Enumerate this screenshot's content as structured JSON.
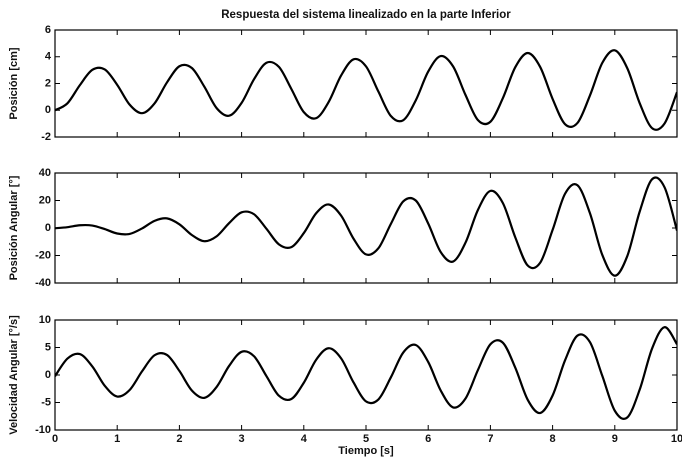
{
  "chart_data": [
    {
      "type": "line",
      "title": "Respuesta del sistema linealizado en la parte Inferior",
      "ylabel": "Posición [cm]",
      "x": [
        0,
        0.2,
        0.4,
        0.6,
        0.8,
        1,
        1.2,
        1.4,
        1.6,
        1.8,
        2,
        2.2,
        2.4,
        2.6,
        2.8,
        3,
        3.2,
        3.4,
        3.6,
        3.8,
        4,
        4.2,
        4.4,
        4.6,
        4.8,
        5,
        5.2,
        5.4,
        5.6,
        5.8,
        6,
        6.2,
        6.4,
        6.6,
        6.8,
        7,
        7.2,
        7.4,
        7.6,
        7.8,
        8,
        8.2,
        8.4,
        8.6,
        8.8,
        9,
        9.2,
        9.4,
        9.6,
        9.8,
        10
      ],
      "series": [
        {
          "color": "#000000",
          "values": [
            0,
            0.52,
            1.88,
            3.02,
            3.05,
            1.9,
            0.42,
            -0.22,
            0.51,
            2.08,
            3.29,
            3.16,
            1.77,
            0.15,
            -0.41,
            0.55,
            2.32,
            3.55,
            3.24,
            1.59,
            -0.14,
            -0.59,
            0.62,
            2.6,
            3.81,
            3.28,
            1.39,
            -0.43,
            -0.74,
            0.74,
            2.89,
            4.05,
            3.28,
            1.14,
            -0.74,
            -0.86,
            0.9,
            3.22,
            4.28,
            3.24,
            0.85,
            -1.04,
            -0.95,
            1.1,
            3.55,
            4.48,
            3.15,
            0.53,
            -1.34,
            -0.99,
            1.35
          ]
        }
      ],
      "xlim": [
        0,
        10
      ],
      "ylim": [
        -2,
        6
      ],
      "yticks": [
        -2,
        0,
        2,
        4,
        6
      ]
    },
    {
      "type": "line",
      "ylabel": "Posición Angular [°]",
      "x": [
        0,
        0.2,
        0.4,
        0.6,
        0.8,
        1,
        1.2,
        1.4,
        1.6,
        1.8,
        2,
        2.2,
        2.4,
        2.6,
        2.8,
        3,
        3.2,
        3.4,
        3.6,
        3.8,
        4,
        4.2,
        4.4,
        4.6,
        4.8,
        5,
        5.2,
        5.4,
        5.6,
        5.8,
        6,
        6.2,
        6.4,
        6.6,
        6.8,
        7,
        7.2,
        7.4,
        7.6,
        7.8,
        8,
        8.2,
        8.4,
        8.6,
        8.8,
        9,
        9.2,
        9.4,
        9.6,
        9.8,
        10
      ],
      "series": [
        {
          "color": "#000000",
          "values": [
            -0.2,
            0.6,
            2,
            1.8,
            -0.8,
            -4,
            -4.3,
            -0.3,
            5.2,
            7,
            2.7,
            -5.1,
            -9.6,
            -6,
            3.6,
            11.4,
            10,
            -0.6,
            -11.9,
            -13.9,
            -3.7,
            10.8,
            17.1,
            9,
            -7.8,
            -19.2,
            -14.7,
            3,
            19.4,
            20,
            3.3,
            -17.4,
            -24.4,
            -10.6,
            13.2,
            27,
            18.2,
            -6.8,
            -27.3,
            -25.3,
            -1.4,
            24.9,
            31.1,
            10.8,
            -19.7,
            -34.7,
            -20.5,
            11.9,
            35.5,
            29.6,
            -1.9
          ]
        }
      ],
      "xlim": [
        0,
        10
      ],
      "ylim": [
        -40,
        40
      ],
      "yticks": [
        -40,
        -20,
        0,
        20,
        40
      ]
    },
    {
      "type": "line",
      "ylabel": "Velocidad Angular [°/s]",
      "xlabel": "Tiempo [s]",
      "x": [
        0,
        0.2,
        0.4,
        0.6,
        0.8,
        1,
        1.2,
        1.4,
        1.6,
        1.8,
        2,
        2.2,
        2.4,
        2.6,
        2.8,
        3,
        3.2,
        3.4,
        3.6,
        3.8,
        4,
        4.2,
        4.4,
        4.6,
        4.8,
        5,
        5.2,
        5.4,
        5.6,
        5.8,
        6,
        6.2,
        6.4,
        6.6,
        6.8,
        7,
        7.2,
        7.4,
        7.6,
        7.8,
        8,
        8.2,
        8.4,
        8.6,
        8.8,
        9,
        9.2,
        9.4,
        9.6,
        9.8,
        10
      ],
      "series": [
        {
          "color": "#000000",
          "values": [
            -0.22,
            2.98,
            3.8,
            1.55,
            -1.96,
            -3.92,
            -2.73,
            0.68,
            3.59,
            3.64,
            0.74,
            -2.82,
            -4.16,
            -2.14,
            1.67,
            4.22,
            3.41,
            -0.21,
            -3.77,
            -4.36,
            -1.41,
            2.8,
            4.87,
            3.02,
            -1.36,
            -4.8,
            -4.44,
            -0.42,
            4.11,
            5.46,
            2.37,
            -2.79,
            -5.89,
            -4.28,
            0.92,
            5.59,
            5.88,
            1.33,
            -4.51,
            -6.91,
            -3.73,
            2.67,
            7.17,
            5.98,
            -0.19,
            -6.5,
            -7.73,
            -2.67,
            4.83,
            8.7,
            5.59
          ]
        }
      ],
      "xlim": [
        0,
        10
      ],
      "ylim": [
        -10,
        10
      ],
      "yticks": [
        -10,
        -5,
        0,
        5,
        10
      ],
      "xticks": [
        0,
        1,
        2,
        3,
        4,
        5,
        6,
        7,
        8,
        9,
        10
      ]
    }
  ]
}
